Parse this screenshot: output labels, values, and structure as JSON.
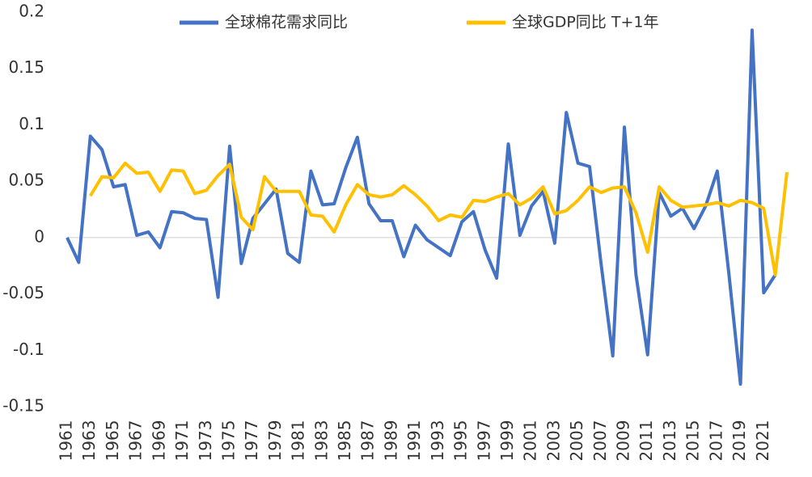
{
  "chart_data": {
    "type": "line",
    "categories": [
      "1961",
      null,
      "1963",
      null,
      "1965",
      null,
      "1967",
      null,
      "1969",
      null,
      "1971",
      null,
      "1973",
      null,
      "1975",
      null,
      "1977",
      null,
      "1979",
      null,
      "1981",
      null,
      "1983",
      null,
      "1985",
      null,
      "1987",
      null,
      "1989",
      null,
      "1991",
      null,
      "1993",
      null,
      "1995",
      null,
      "1997",
      null,
      "1999",
      null,
      "2001",
      null,
      "2003",
      null,
      "2005",
      null,
      "2007",
      null,
      "2009",
      null,
      "2011",
      null,
      "2013",
      null,
      "2015",
      null,
      "2017",
      null,
      "2019",
      null,
      "2021",
      null,
      null
    ],
    "series": [
      {
        "name": "全球棉花需求同比",
        "color": "#4472c4",
        "values": [
          0,
          -0.022,
          0.09,
          0.078,
          0.045,
          0.047,
          0.002,
          0.005,
          -0.009,
          0.023,
          0.022,
          0.017,
          0.016,
          -0.053,
          0.081,
          -0.023,
          0.017,
          0.03,
          0.043,
          -0.014,
          -0.022,
          0.059,
          0.029,
          0.03,
          0.062,
          0.089,
          0.03,
          0.015,
          0.015,
          -0.017,
          0.011,
          -0.002,
          -0.009,
          -0.016,
          0.014,
          0.023,
          -0.011,
          -0.036,
          0.083,
          0.002,
          0.028,
          0.041,
          -0.005,
          0.111,
          0.066,
          0.063,
          -0.024,
          -0.105,
          0.098,
          -0.033,
          -0.104,
          0.04,
          0.019,
          0.026,
          0.008,
          0.028,
          0.059,
          -0.032,
          -0.13,
          0.184,
          -0.049,
          -0.033,
          null
        ]
      },
      {
        "name": "全球GDP同比 T+1年",
        "color": "#ffc000",
        "values": [
          null,
          null,
          0.037,
          0.054,
          0.053,
          0.066,
          0.057,
          0.058,
          0.041,
          0.06,
          0.059,
          0.039,
          0.042,
          0.055,
          0.065,
          0.018,
          0.007,
          0.054,
          0.041,
          0.041,
          0.041,
          0.02,
          0.019,
          0.005,
          0.029,
          0.047,
          0.038,
          0.036,
          0.038,
          0.046,
          0.038,
          0.028,
          0.015,
          0.02,
          0.018,
          0.033,
          0.032,
          0.036,
          0.039,
          0.029,
          0.035,
          0.045,
          0.021,
          0.024,
          0.033,
          0.045,
          0.04,
          0.044,
          0.045,
          0.022,
          -0.013,
          0.045,
          0.033,
          0.027,
          0.028,
          0.029,
          0.031,
          0.028,
          0.033,
          0.031,
          0.026,
          -0.033,
          0.058
        ]
      }
    ],
    "ylim": [
      -0.15,
      0.2
    ],
    "yticks": [
      0.2,
      0.15,
      0.1,
      0.05,
      0,
      -0.05,
      -0.1,
      -0.15
    ],
    "legend": "top"
  }
}
